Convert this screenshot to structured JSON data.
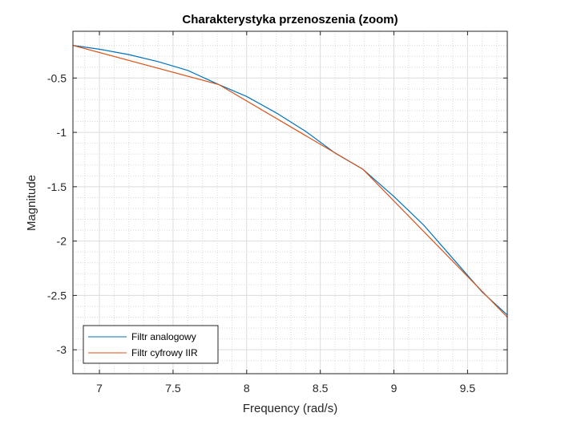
{
  "chart_data": {
    "type": "line",
    "title": "Charakterystyka przenoszenia (zoom)",
    "xlabel": "Frequency (rad/s)",
    "ylabel": "Magnitude",
    "xlim": [
      6.82,
      9.77
    ],
    "ylim": [
      -3.22,
      -0.07
    ],
    "xticks": [
      7,
      7.5,
      8,
      8.5,
      9,
      9.5
    ],
    "xtick_labels": [
      "7",
      "7.5",
      "8",
      "8.5",
      "9",
      "9.5"
    ],
    "yticks": [
      -0.5,
      -1,
      -1.5,
      -2,
      -2.5,
      -3
    ],
    "ytick_labels": [
      "-0.5",
      "-1",
      "-1.5",
      "-2",
      "-2.5",
      "-3"
    ],
    "grid": "on (major and dotted minor)",
    "legend_position": "bottom-left",
    "series": [
      {
        "name": "Filtr analogowy",
        "color": "#0072BD",
        "x": [
          6.82,
          7.0,
          7.2,
          7.4,
          7.6,
          7.81,
          8.0,
          8.2,
          8.4,
          8.6,
          8.79,
          9.0,
          9.2,
          9.4,
          9.6,
          9.77
        ],
        "y": [
          -0.2,
          -0.235,
          -0.285,
          -0.35,
          -0.43,
          -0.56,
          -0.67,
          -0.82,
          -0.99,
          -1.19,
          -1.34,
          -1.59,
          -1.85,
          -2.16,
          -2.47,
          -2.68
        ]
      },
      {
        "name": "Filtr cyfrowy IIR",
        "color": "#D95319",
        "x": [
          6.82,
          7.81,
          8.79,
          9.77
        ],
        "y": [
          -0.2,
          -0.56,
          -1.34,
          -2.7
        ]
      }
    ]
  }
}
